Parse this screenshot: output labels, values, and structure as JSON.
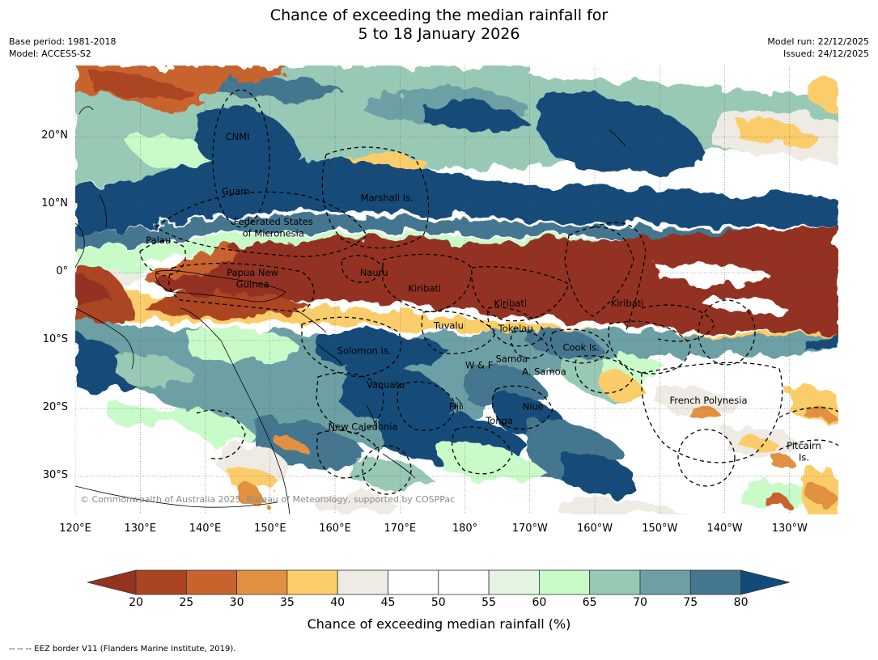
{
  "title": {
    "line1": "Chance of exceeding the median rainfall for",
    "line2": "5 to 18 January 2026"
  },
  "meta": {
    "base_period": "Base period: 1981-2018",
    "model": "Model: ACCESS-S2",
    "model_run": "Model run: 22/12/2025",
    "issued": "Issued: 24/12/2025"
  },
  "map": {
    "lon_ticks": [
      "120°E",
      "130°E",
      "140°E",
      "150°E",
      "160°E",
      "170°E",
      "180°",
      "170°W",
      "160°W",
      "150°W",
      "140°W",
      "130°W"
    ],
    "lat_ticks": [
      "20°N",
      "10°N",
      "0°",
      "10°S",
      "20°S",
      "30°S"
    ],
    "regions": [
      {
        "name": "CNMI",
        "lon": 145.0,
        "lat": 20.0
      },
      {
        "name": "Guam",
        "lon": 144.7,
        "lat": 12.0
      },
      {
        "name": "Marshall Is.",
        "lon": 168.0,
        "lat": 11.0
      },
      {
        "name": "Federated States",
        "lon": 150.5,
        "lat": 7.5
      },
      {
        "name": "of Micronesia",
        "lon": 150.5,
        "lat": 5.8
      },
      {
        "name": "Palau",
        "lon": 132.8,
        "lat": 4.8
      },
      {
        "name": "Papua New",
        "lon": 147.3,
        "lat": 0.0
      },
      {
        "name": "Guinea",
        "lon": 147.3,
        "lat": -1.7
      },
      {
        "name": "Nauru",
        "lon": 166.0,
        "lat": 0.0
      },
      {
        "name": "Kiribati",
        "lon": 173.8,
        "lat": -2.3
      },
      {
        "name": "Kiribati",
        "lon": 187.0,
        "lat": -4.5
      },
      {
        "name": "Kiribati",
        "lon": 205.0,
        "lat": -4.5
      },
      {
        "name": "Tuvalu",
        "lon": 177.5,
        "lat": -7.8
      },
      {
        "name": "Tokelau",
        "lon": 187.8,
        "lat": -8.2
      },
      {
        "name": "Cook Is.",
        "lon": 197.9,
        "lat": -11.0
      },
      {
        "name": "Solomon Is.",
        "lon": 164.5,
        "lat": -11.5
      },
      {
        "name": "Samoa",
        "lon": 187.2,
        "lat": -12.7
      },
      {
        "name": "W & F",
        "lon": 182.2,
        "lat": -13.6
      },
      {
        "name": "A. Samoa",
        "lon": 192.2,
        "lat": -14.6
      },
      {
        "name": "Vanuatu",
        "lon": 167.8,
        "lat": -16.5
      },
      {
        "name": "Fiji",
        "lon": 178.5,
        "lat": -19.7
      },
      {
        "name": "Niue",
        "lon": 190.5,
        "lat": -19.7
      },
      {
        "name": "French Polynesia",
        "lon": 217.5,
        "lat": -18.8
      },
      {
        "name": "Tonga",
        "lon": 185.3,
        "lat": -21.8
      },
      {
        "name": "New Caledonia",
        "lon": 164.3,
        "lat": -22.7
      },
      {
        "name": "Pitcairn",
        "lon": 232.2,
        "lat": -25.5
      },
      {
        "name": "Is.",
        "lon": 232.2,
        "lat": -27.2
      }
    ],
    "copyright": "© Commonwealth of Australia 2025, Bureau of Meteorology, supported by COSPPac"
  },
  "colorbar": {
    "ticks": [
      "20",
      "25",
      "30",
      "35",
      "40",
      "45",
      "50",
      "55",
      "60",
      "65",
      "70",
      "75",
      "80"
    ],
    "colors": [
      "#ab4423",
      "#c8632e",
      "#e1913f",
      "#fbcd6a",
      "#eeebe5",
      "#ffffff",
      "#ffffff",
      "#e4f4e2",
      "#c9fbc9",
      "#98c9b5",
      "#6ca0a4",
      "#44768f",
      "#124b79"
    ],
    "under_color": "#933320",
    "over_color": "#124b79",
    "label": "Chance of exceeding median rainfall (%)"
  },
  "footer": "--  --  -- EEZ border V11 (Flanders Marine Institute, 2019)."
}
